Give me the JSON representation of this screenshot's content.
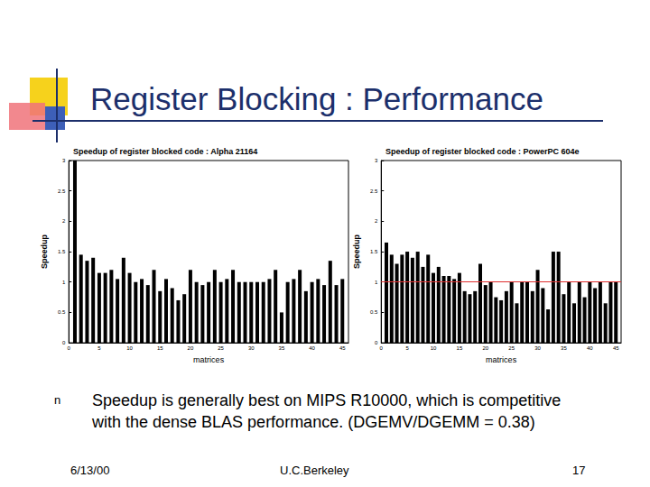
{
  "slide": {
    "title": "Register Blocking : Performance",
    "bullet_marker": "n",
    "bullet_lines": [
      "Speedup is generally best on MIPS R10000, which is competitive",
      "with the dense BLAS performance. (DGEMV/DGEMM = 0.38)"
    ],
    "footer_left": "6/13/00",
    "footer_center": "U.C.Berkeley",
    "footer_right": "17"
  },
  "chart_data": [
    {
      "type": "bar",
      "title": "Speedup of register blocked code : Alpha 21164",
      "x_label": "matrices",
      "y_label": "Speedup",
      "x": [
        1,
        2,
        3,
        4,
        5,
        6,
        7,
        8,
        9,
        10,
        11,
        12,
        13,
        14,
        15,
        16,
        17,
        18,
        19,
        20,
        21,
        22,
        23,
        24,
        25,
        26,
        27,
        28,
        29,
        30,
        31,
        32,
        33,
        34,
        35,
        36,
        37,
        38,
        39,
        40,
        41,
        42,
        43,
        44,
        45
      ],
      "values": [
        3.0,
        1.45,
        1.35,
        1.4,
        1.15,
        1.15,
        1.2,
        1.05,
        1.4,
        1.15,
        1.0,
        1.05,
        0.95,
        1.2,
        0.85,
        1.05,
        0.9,
        0.7,
        0.8,
        1.2,
        1.0,
        0.95,
        1.0,
        1.2,
        1.0,
        1.05,
        1.2,
        1.0,
        1.0,
        1.0,
        1.0,
        1.0,
        1.05,
        1.2,
        0.5,
        1.0,
        1.05,
        1.2,
        0.85,
        1.0,
        1.05,
        0.95,
        1.35,
        0.95,
        1.05
      ],
      "color": "#000000",
      "xlim": [
        0,
        46
      ],
      "xticks": [
        0,
        5,
        10,
        15,
        20,
        25,
        30,
        35,
        40,
        45
      ],
      "ylim": [
        0,
        3
      ],
      "yticks": [
        0,
        0.5,
        1,
        1.5,
        2,
        2.5,
        3
      ],
      "grid": false
    },
    {
      "type": "bar",
      "title": "Speedup of register blocked code : PowerPC 604e",
      "x_label": "matrices",
      "y_label": "Speedup",
      "x": [
        1,
        2,
        3,
        4,
        5,
        6,
        7,
        8,
        9,
        10,
        11,
        12,
        13,
        14,
        15,
        16,
        17,
        18,
        19,
        20,
        21,
        22,
        23,
        24,
        25,
        26,
        27,
        28,
        29,
        30,
        31,
        32,
        33,
        34,
        35,
        36,
        37,
        38,
        39,
        40,
        41,
        42,
        43,
        44,
        45
      ],
      "values": [
        1.65,
        1.45,
        1.3,
        1.45,
        1.5,
        1.4,
        1.5,
        1.25,
        1.45,
        1.15,
        1.25,
        1.1,
        1.1,
        1.05,
        1.15,
        0.85,
        0.8,
        0.85,
        1.3,
        0.95,
        1.0,
        0.75,
        0.7,
        0.85,
        1.0,
        0.65,
        1.0,
        1.0,
        0.85,
        1.2,
        0.9,
        0.55,
        1.5,
        1.5,
        0.8,
        1.0,
        0.65,
        1.0,
        0.75,
        1.0,
        0.9,
        1.0,
        0.65,
        1.0,
        1.0
      ],
      "color": "#000000",
      "xlim": [
        0,
        46
      ],
      "xticks": [
        0,
        5,
        10,
        15,
        20,
        25,
        30,
        35,
        40,
        45
      ],
      "ylim": [
        0,
        3
      ],
      "yticks": [
        0,
        0.5,
        1,
        1.5,
        2,
        2.5,
        3
      ],
      "grid": false,
      "reference_lines": [
        {
          "y": 1,
          "color": "#e03030"
        }
      ]
    }
  ]
}
